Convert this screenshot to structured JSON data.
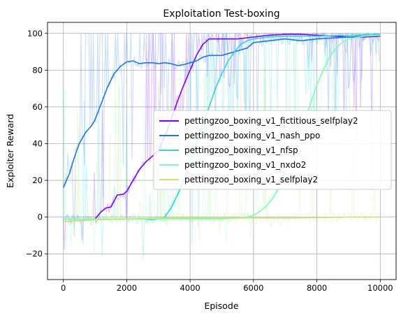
{
  "chart_data": {
    "type": "line",
    "title": "Exploitation Test-boxing",
    "xlabel": "Episode",
    "ylabel": "Exploiter Reward",
    "xlim": [
      -500,
      10500
    ],
    "ylim": [
      -34,
      106
    ],
    "xticks": [
      0,
      2000,
      4000,
      6000,
      8000,
      10000
    ],
    "xtick_labels": [
      "0",
      "2000",
      "4000",
      "6000",
      "8000",
      "10000"
    ],
    "yticks": [
      -20,
      0,
      20,
      40,
      60,
      80,
      100
    ],
    "ytick_labels": [
      "−20",
      "0",
      "20",
      "40",
      "60",
      "80",
      "100"
    ],
    "grid": true,
    "legend_position": "center-right",
    "series": [
      {
        "name": "pettingzoo_boxing_v1_fictitious_selfplay2",
        "color": "#7f00ff",
        "x": [
          0,
          1000,
          1200,
          1350,
          1500,
          1700,
          1900,
          2000,
          2200,
          2400,
          2600,
          2800,
          3000,
          3200,
          3400,
          3600,
          3800,
          4000,
          4200,
          4400,
          4600,
          5000,
          5500,
          6000,
          6500,
          7000,
          7500,
          8000,
          8500,
          9000,
          9500,
          10000
        ],
        "y": [
          -1,
          -1,
          3,
          5,
          5.5,
          12,
          12.5,
          14,
          20,
          26,
          30,
          33,
          36,
          44,
          53,
          63,
          72,
          80,
          88,
          94,
          97,
          97,
          97,
          98,
          99,
          99.5,
          99.5,
          99,
          98.5,
          98,
          98,
          98.5
        ]
      },
      {
        "name": "pettingzoo_boxing_v1_nash_ppo",
        "color": "#1f77e8",
        "x": [
          0,
          100,
          200,
          300,
          400,
          500,
          600,
          700,
          800,
          900,
          1000,
          1200,
          1400,
          1600,
          1800,
          2000,
          2200,
          2400,
          2600,
          2800,
          3000,
          3200,
          3400,
          3600,
          3800,
          4000,
          4200,
          4400,
          4600,
          4800,
          5000,
          5200,
          5400,
          5600,
          5800,
          6000,
          6500,
          7000,
          7500,
          8000,
          9000,
          10000
        ],
        "y": [
          16,
          20,
          24,
          30,
          35,
          40,
          43,
          46,
          48,
          50,
          53,
          62,
          71,
          78,
          82,
          84.5,
          85,
          83.5,
          84,
          84,
          83.5,
          84,
          83.5,
          82.5,
          83,
          84,
          85,
          87,
          88,
          88,
          88,
          89,
          90,
          91,
          92,
          95,
          96,
          97,
          96,
          97,
          98,
          99
        ]
      },
      {
        "name": "pettingzoo_boxing_v1_nfsp",
        "color": "#2dd6e0",
        "x": [
          0,
          1000,
          2000,
          2500,
          2800,
          3000,
          3200,
          3400,
          3600,
          3800,
          4000,
          4200,
          4400,
          4600,
          4800,
          5000,
          5200,
          5400,
          5600,
          5800,
          6000,
          6500,
          7000,
          8000,
          9000,
          10000
        ],
        "y": [
          -1,
          -1,
          -1,
          -1,
          -1.5,
          -1,
          0,
          5,
          12,
          20,
          30,
          40,
          50,
          60,
          70,
          78,
          85,
          90,
          94,
          96,
          97,
          98,
          98.5,
          98.5,
          99,
          99.5
        ]
      },
      {
        "name": "pettingzoo_boxing_v1_nxdo2",
        "color": "#80ffb0",
        "x": [
          0,
          1000,
          2000,
          3000,
          4000,
          5000,
          5500,
          5800,
          6000,
          6200,
          6400,
          6600,
          6800,
          7000,
          7200,
          7400,
          7600,
          7800,
          8000,
          8200,
          8400,
          8600,
          8800,
          9000,
          9500,
          10000
        ],
        "y": [
          -1,
          -1,
          -1,
          -1,
          -1,
          -1,
          -0.5,
          0,
          1,
          3,
          6,
          10,
          16,
          24,
          33,
          42,
          52,
          62,
          72,
          80,
          87,
          92,
          95,
          97,
          98.5,
          99
        ]
      },
      {
        "name": "pettingzoo_boxing_v1_selfplay2",
        "color": "#d4dc7e",
        "x": [
          0,
          1000,
          2000,
          3000,
          4000,
          5000,
          6000,
          7000,
          8000,
          9000,
          10000
        ],
        "y": [
          -2.5,
          -1.5,
          -1,
          -0.5,
          -0.5,
          -0.5,
          -0.5,
          -0.5,
          -0.3,
          0,
          0
        ]
      }
    ]
  }
}
